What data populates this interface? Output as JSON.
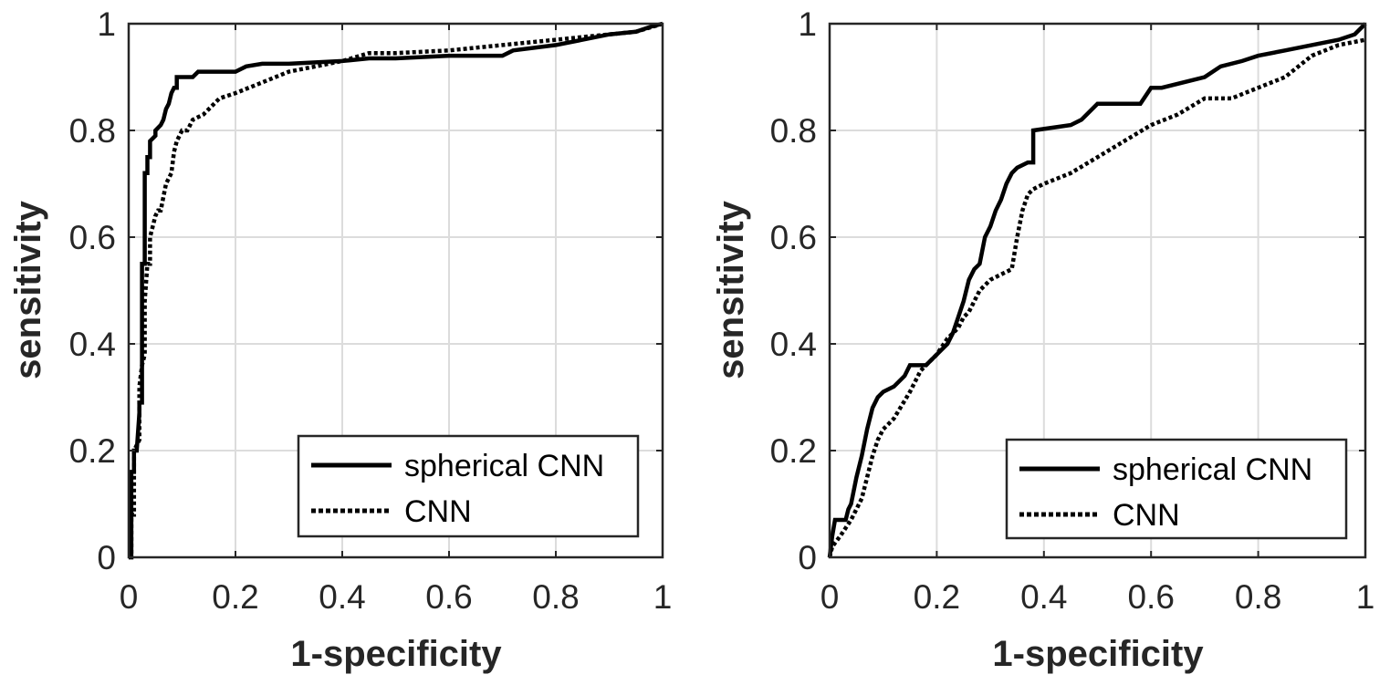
{
  "chart_data": [
    {
      "type": "line",
      "title": "",
      "xlabel": "1-specificity",
      "ylabel": "sensitivity",
      "xlim": [
        0,
        1
      ],
      "ylim": [
        0,
        1
      ],
      "grid": true,
      "legend_position": "bottom-right",
      "xticks": [
        "0",
        "0.2",
        "0.4",
        "0.6",
        "0.8",
        "1"
      ],
      "yticks": [
        "0",
        "0.2",
        "0.4",
        "0.6",
        "0.8",
        "1"
      ],
      "series": [
        {
          "name": "spherical CNN",
          "style": "solid",
          "x": [
            0,
            0.005,
            0.005,
            0.01,
            0.01,
            0.015,
            0.02,
            0.02,
            0.025,
            0.025,
            0.03,
            0.03,
            0.035,
            0.035,
            0.04,
            0.04,
            0.05,
            0.05,
            0.06,
            0.065,
            0.07,
            0.075,
            0.08,
            0.085,
            0.09,
            0.09,
            0.12,
            0.13,
            0.2,
            0.22,
            0.25,
            0.3,
            0.4,
            0.45,
            0.5,
            0.6,
            0.7,
            0.72,
            0.8,
            0.85,
            0.9,
            0.95,
            0.98,
            1.0
          ],
          "y": [
            0,
            0,
            0.16,
            0.16,
            0.2,
            0.2,
            0.27,
            0.29,
            0.29,
            0.55,
            0.55,
            0.72,
            0.72,
            0.75,
            0.75,
            0.78,
            0.79,
            0.8,
            0.81,
            0.82,
            0.84,
            0.85,
            0.87,
            0.88,
            0.88,
            0.9,
            0.9,
            0.91,
            0.91,
            0.92,
            0.925,
            0.925,
            0.93,
            0.935,
            0.935,
            0.94,
            0.94,
            0.95,
            0.96,
            0.97,
            0.98,
            0.985,
            0.995,
            1.0
          ]
        },
        {
          "name": "CNN",
          "style": "dotted",
          "x": [
            0,
            0.005,
            0.005,
            0.01,
            0.01,
            0.02,
            0.02,
            0.025,
            0.03,
            0.03,
            0.035,
            0.04,
            0.04,
            0.05,
            0.055,
            0.06,
            0.07,
            0.08,
            0.085,
            0.09,
            0.1,
            0.11,
            0.12,
            0.14,
            0.15,
            0.17,
            0.2,
            0.25,
            0.3,
            0.35,
            0.4,
            0.45,
            0.5,
            0.6,
            0.7,
            0.75,
            0.8,
            0.85,
            0.9,
            0.95,
            1.0
          ],
          "y": [
            0,
            0,
            0.08,
            0.08,
            0.2,
            0.22,
            0.32,
            0.36,
            0.38,
            0.48,
            0.55,
            0.55,
            0.6,
            0.64,
            0.65,
            0.65,
            0.7,
            0.72,
            0.76,
            0.78,
            0.8,
            0.8,
            0.82,
            0.83,
            0.84,
            0.86,
            0.87,
            0.89,
            0.91,
            0.92,
            0.93,
            0.945,
            0.945,
            0.95,
            0.96,
            0.965,
            0.97,
            0.975,
            0.98,
            0.985,
            1.0
          ]
        }
      ]
    },
    {
      "type": "line",
      "title": "",
      "xlabel": "1-specificity",
      "ylabel": "sensitivity",
      "xlim": [
        0,
        1
      ],
      "ylim": [
        0,
        1
      ],
      "grid": true,
      "legend_position": "bottom-right",
      "xticks": [
        "0",
        "0.2",
        "0.4",
        "0.6",
        "0.8",
        "1"
      ],
      "yticks": [
        "0",
        "0.2",
        "0.4",
        "0.6",
        "0.8",
        "1"
      ],
      "series": [
        {
          "name": "spherical CNN",
          "style": "solid",
          "x": [
            0,
            0.005,
            0.01,
            0.03,
            0.035,
            0.04,
            0.05,
            0.06,
            0.07,
            0.08,
            0.09,
            0.1,
            0.12,
            0.14,
            0.15,
            0.18,
            0.2,
            0.22,
            0.23,
            0.24,
            0.25,
            0.26,
            0.27,
            0.28,
            0.29,
            0.3,
            0.31,
            0.32,
            0.33,
            0.34,
            0.35,
            0.37,
            0.38,
            0.38,
            0.45,
            0.47,
            0.5,
            0.58,
            0.6,
            0.62,
            0.7,
            0.73,
            0.77,
            0.8,
            0.85,
            0.9,
            0.95,
            0.98,
            1.0
          ],
          "y": [
            0,
            0.04,
            0.07,
            0.07,
            0.09,
            0.1,
            0.15,
            0.19,
            0.24,
            0.28,
            0.3,
            0.31,
            0.32,
            0.34,
            0.36,
            0.36,
            0.38,
            0.4,
            0.42,
            0.45,
            0.48,
            0.52,
            0.54,
            0.55,
            0.6,
            0.62,
            0.65,
            0.67,
            0.7,
            0.72,
            0.73,
            0.74,
            0.74,
            0.8,
            0.81,
            0.82,
            0.85,
            0.85,
            0.88,
            0.88,
            0.9,
            0.92,
            0.93,
            0.94,
            0.95,
            0.96,
            0.97,
            0.98,
            1.0
          ]
        },
        {
          "name": "CNN",
          "style": "dotted",
          "x": [
            0,
            0.005,
            0.02,
            0.04,
            0.06,
            0.07,
            0.08,
            0.09,
            0.1,
            0.12,
            0.15,
            0.17,
            0.2,
            0.22,
            0.24,
            0.25,
            0.26,
            0.28,
            0.3,
            0.32,
            0.34,
            0.35,
            0.36,
            0.37,
            0.38,
            0.4,
            0.45,
            0.5,
            0.55,
            0.6,
            0.65,
            0.7,
            0.75,
            0.8,
            0.85,
            0.9,
            0.95,
            1.0
          ],
          "y": [
            0,
            0.02,
            0.04,
            0.07,
            0.11,
            0.15,
            0.19,
            0.22,
            0.24,
            0.26,
            0.31,
            0.35,
            0.38,
            0.41,
            0.43,
            0.45,
            0.46,
            0.5,
            0.52,
            0.53,
            0.54,
            0.6,
            0.65,
            0.68,
            0.69,
            0.7,
            0.72,
            0.75,
            0.78,
            0.81,
            0.83,
            0.86,
            0.86,
            0.88,
            0.9,
            0.94,
            0.96,
            0.97
          ]
        }
      ]
    }
  ]
}
